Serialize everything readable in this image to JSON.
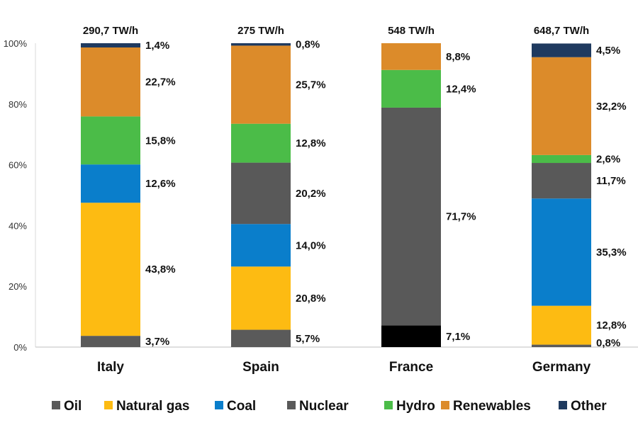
{
  "chart_data": {
    "type": "bar",
    "stacked": true,
    "categories": [
      "Italy",
      "Spain",
      "France",
      "Germany"
    ],
    "totals": [
      "290,7 TW/h",
      "275 TW/h",
      "548 TW/h",
      "648,7 TW/h"
    ],
    "ylim": [
      0,
      100
    ],
    "yticks": [
      0,
      20,
      40,
      60,
      80,
      100
    ],
    "ytick_labels": [
      "0%",
      "20%",
      "40%",
      "60%",
      "80%",
      "100%"
    ],
    "grid": false,
    "legend_position": "bottom",
    "series": [
      {
        "name": "Oil",
        "color": "#5a5a5a",
        "values": [
          3.7,
          5.7,
          7.1,
          0.8
        ],
        "labels": [
          "3,7%",
          "5,7%",
          "7,1%",
          "0,8%"
        ],
        "colors": [
          null,
          null,
          "#000000",
          null
        ]
      },
      {
        "name": "Natural gas",
        "color": "#fdbb12",
        "values": [
          43.8,
          20.8,
          0,
          12.8
        ],
        "labels": [
          "43,8%",
          "20,8%",
          "",
          "12,8%"
        ]
      },
      {
        "name": "Coal",
        "color": "#0a7ecb",
        "values": [
          12.6,
          14.0,
          0,
          35.3
        ],
        "labels": [
          "12,6%",
          "14,0%",
          "",
          "35,3%"
        ]
      },
      {
        "name": "Nuclear",
        "color": "#595959",
        "values": [
          0,
          20.2,
          71.7,
          11.7
        ],
        "labels": [
          "",
          "20,2%",
          "71,7%",
          "11,7%"
        ]
      },
      {
        "name": "Hydro",
        "color": "#4bbc48",
        "values": [
          15.8,
          12.8,
          12.4,
          2.6
        ],
        "labels": [
          "15,8%",
          "12,8%",
          "12,4%",
          "2,6%"
        ]
      },
      {
        "name": "Renewables",
        "color": "#dc8b2a",
        "values": [
          22.7,
          25.7,
          8.8,
          32.2
        ],
        "labels": [
          "22,7%",
          "25,7%",
          "8,8%",
          "32,2%"
        ]
      },
      {
        "name": "Other",
        "color": "#1f3a5f",
        "values": [
          1.4,
          0.8,
          0,
          4.5
        ],
        "labels": [
          "1,4%",
          "0,8%",
          "",
          "4,5%"
        ]
      }
    ]
  }
}
